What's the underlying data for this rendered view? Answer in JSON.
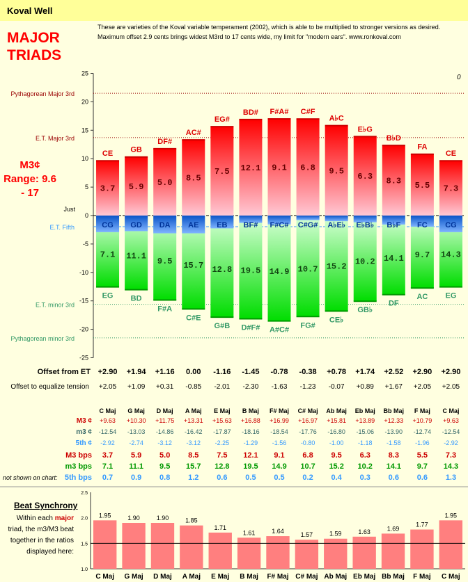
{
  "app_title": "Koval  Well",
  "intro": "These are varieties of the Koval variable temperament (2002), which is able to be multiplied to stronger versions as desired. Maximum offset 2.9 cents brings widest M3rd to 17 cents wide, my limit for \"modern ears\". www.ronkoval.com",
  "main_title_line1": "MAJOR",
  "main_title_line2": "TRIADS",
  "m3_label": "M3¢",
  "range_label": "Range: 9.6 - 17",
  "corner_zero": "0",
  "colors": {
    "red": "#ff0000",
    "green": "#00cc00",
    "blue": "#3399ff",
    "salmon": "#ff7f7f",
    "dark_green": "#339966",
    "brown": "#990000"
  },
  "chart_data": [
    {
      "type": "bar",
      "title": "",
      "ylim": [
        -25,
        25
      ],
      "yticks": [
        25,
        20,
        15,
        10,
        5,
        0,
        -5,
        -10,
        -15,
        -20,
        -25
      ],
      "reference_lines": [
        {
          "label": "Pythagorean Major 3rd",
          "value": 21.5
        },
        {
          "label": "E.T. Major 3rd",
          "value": 13.7
        },
        {
          "label": "Just",
          "value": 0
        },
        {
          "label": "E.T. Fifth",
          "value": -1.96
        },
        {
          "label": "E.T. minor 3rd",
          "value": -15.6
        },
        {
          "label": "Pythagorean minor 3rd",
          "value": -21.5
        }
      ],
      "top_labels": [
        "CE",
        "GB",
        "DF#",
        "AC#",
        "EG#",
        "BD#",
        "F#A#",
        "C#F",
        "A♭C",
        "E♭G",
        "B♭D",
        "FA",
        "CE"
      ],
      "fifth_labels": [
        "CG",
        "GD",
        "DA",
        "AE",
        "EB",
        "BF#",
        "F#C#",
        "C#G#",
        "A♭E♭",
        "E♭B♭",
        "B♭F",
        "FC",
        "CG"
      ],
      "bottom_labels": [
        "EG",
        "BD",
        "F#A",
        "C#E",
        "G#B",
        "D#F#",
        "A#C#",
        "FG#",
        "CE♭",
        "GB♭",
        "DF",
        "AC",
        "EG"
      ],
      "series": [
        {
          "name": "M3 ¢",
          "values": [
            9.63,
            10.3,
            11.75,
            13.31,
            15.63,
            16.88,
            16.99,
            16.97,
            15.81,
            13.89,
            12.33,
            10.79,
            9.63
          ],
          "bar_labels": [
            3.7,
            5.9,
            5.0,
            8.5,
            7.5,
            12.1,
            9.1,
            6.8,
            9.5,
            6.3,
            8.3,
            5.5,
            7.3
          ]
        },
        {
          "name": "m3 ¢",
          "values": [
            -12.54,
            -13.03,
            -14.86,
            -16.42,
            -17.87,
            -18.16,
            -18.54,
            -17.76,
            -16.8,
            -15.06,
            -13.9,
            -12.74,
            -12.54
          ],
          "bar_labels": [
            7.1,
            11.1,
            9.5,
            15.7,
            12.8,
            19.5,
            14.9,
            10.7,
            15.2,
            10.2,
            14.1,
            9.7,
            14.3
          ]
        },
        {
          "name": "5th ¢",
          "values": [
            -2.92,
            -2.74,
            -3.12,
            -3.12,
            -2.25,
            -1.29,
            -1.56,
            -0.8,
            -1.0,
            -1.18,
            -1.58,
            -1.96,
            -2.92
          ]
        }
      ]
    },
    {
      "type": "bar",
      "title": "Beat Synchrony",
      "categories": [
        "C Maj",
        "G Maj",
        "D Maj",
        "A Maj",
        "E Maj",
        "B Maj",
        "F# Maj",
        "C# Maj",
        "Ab Maj",
        "Eb Maj",
        "Bb Maj",
        "F Maj",
        "C Maj"
      ],
      "values": [
        1.95,
        1.9,
        1.9,
        1.85,
        1.71,
        1.61,
        1.64,
        1.57,
        1.59,
        1.63,
        1.69,
        1.77,
        1.95
      ],
      "ylim": [
        1.0,
        2.5
      ],
      "yticks": [
        "2.5",
        "2.0",
        "1.5",
        "1.0"
      ],
      "reference_line": 1.5
    }
  ],
  "offset_rows": [
    {
      "label": "Offset from ET",
      "values": [
        "+2.90",
        "+1.94",
        "+1.16",
        "0.00",
        "-1.16",
        "-1.45",
        "-0.78",
        "-0.38",
        "+0.78",
        "+1.74",
        "+2.52",
        "+2.90",
        "+2.90"
      ]
    },
    {
      "label": "Offset to equalize tension",
      "values": [
        "+2.05",
        "+1.09",
        "+0.31",
        "-0.85",
        "-2.01",
        "-2.30",
        "-1.63",
        "-1.23",
        "-0.07",
        "+0.89",
        "+1.67",
        "+2.05",
        "+2.05"
      ]
    }
  ],
  "table": {
    "header": [
      "C Maj",
      "G Maj",
      "D Maj",
      "A Maj",
      "E Maj",
      "B Maj",
      "F# Maj",
      "C# Maj",
      "Ab Maj",
      "Eb Maj",
      "Bb Maj",
      "F Maj",
      "C Maj"
    ],
    "rows": [
      {
        "label": "M3 ¢",
        "values": [
          "+9.63",
          "+10.30",
          "+11.75",
          "+13.31",
          "+15.63",
          "+16.88",
          "+16.99",
          "+16.97",
          "+15.81",
          "+13.89",
          "+12.33",
          "+10.79",
          "+9.63"
        ]
      },
      {
        "label": "m3 ¢",
        "values": [
          "-12.54",
          "-13.03",
          "-14.86",
          "-16.42",
          "-17.87",
          "-18.16",
          "-18.54",
          "-17.76",
          "-16.80",
          "-15.06",
          "-13.90",
          "-12.74",
          "-12.54"
        ]
      },
      {
        "label": "5th ¢",
        "values": [
          "-2.92",
          "-2.74",
          "-3.12",
          "-3.12",
          "-2.25",
          "-1.29",
          "-1.56",
          "-0.80",
          "-1.00",
          "-1.18",
          "-1.58",
          "-1.96",
          "-2.92"
        ]
      },
      {
        "label": "M3 bps",
        "values": [
          "3.7",
          "5.9",
          "5.0",
          "8.5",
          "7.5",
          "12.1",
          "9.1",
          "6.8",
          "9.5",
          "6.3",
          "8.3",
          "5.5",
          "7.3"
        ]
      },
      {
        "label": "m3 bps",
        "values": [
          "7.1",
          "11.1",
          "9.5",
          "15.7",
          "12.8",
          "19.5",
          "14.9",
          "10.7",
          "15.2",
          "10.2",
          "14.1",
          "9.7",
          "14.3"
        ]
      },
      {
        "label": "5th bps",
        "values": [
          "0.7",
          "0.9",
          "0.8",
          "1.2",
          "0.6",
          "0.5",
          "0.5",
          "0.2",
          "0.4",
          "0.3",
          "0.6",
          "0.6",
          "1.3"
        ]
      }
    ],
    "note": "not shown on chart:"
  },
  "beat_title": "Beat Synchrony",
  "beat_desc_before": "Within each ",
  "beat_desc_major": "major",
  "beat_desc_after": " triad, the m3/M3 beat together in the ratios displayed here:"
}
